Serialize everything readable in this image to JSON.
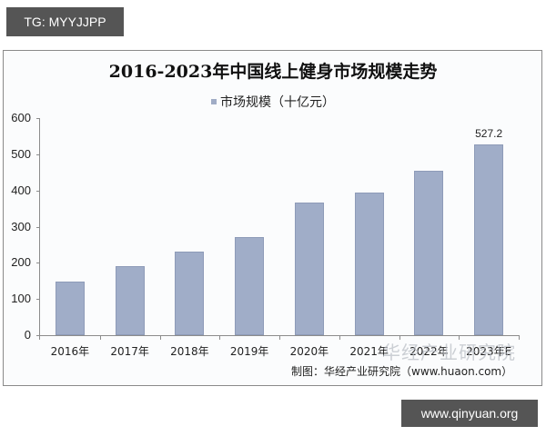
{
  "badges": {
    "top_left": "TG: MYYJJPP",
    "bottom_right": "www.qinyuan.org"
  },
  "chart_data": {
    "type": "bar",
    "title": "2016-2023年中国线上健身市场规模走势",
    "legend": [
      {
        "name": "市场规模（十亿元）",
        "color": "#a0adc8"
      }
    ],
    "legend_position": "top",
    "categories": [
      "2016年",
      "2017年",
      "2018年",
      "2019年",
      "2020年",
      "2021年",
      "2022年",
      "2023年E"
    ],
    "series": [
      {
        "name": "市场规模（十亿元）",
        "values": [
          148,
          192,
          232,
          272,
          367,
          395,
          455,
          527.2
        ]
      }
    ],
    "data_labels": [
      {
        "category": "2023年E",
        "text": "527.2"
      }
    ],
    "xlabel": "",
    "ylabel": "",
    "ylim": [
      0,
      600
    ],
    "yticks": [
      0,
      100,
      200,
      300,
      400,
      500,
      600
    ],
    "grid": false
  },
  "chart_frame": {
    "watermark": "华经产业研究院",
    "source": "制图：华经产业研究院（www.huaon.com）"
  },
  "colors": {
    "bar": "#a0adc8",
    "badge_bg": "#555555"
  }
}
